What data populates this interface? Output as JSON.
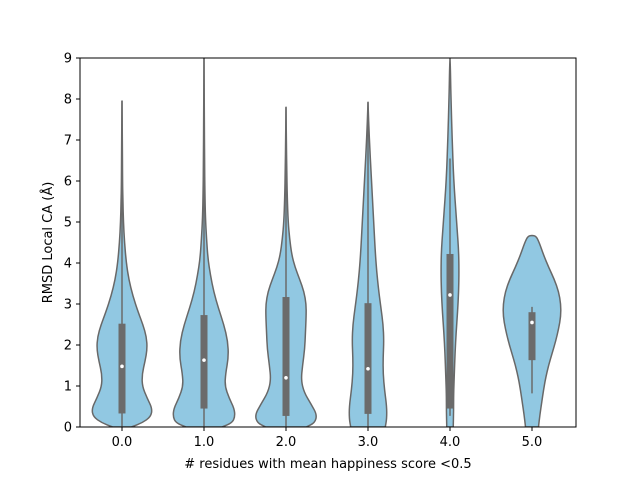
{
  "chart_data": {
    "type": "violin",
    "title": "",
    "xlabel": "# residues with mean happiness score <0.5",
    "ylabel": "RMSD Local CA (Å)",
    "ylim": [
      0,
      9
    ],
    "yticks": [
      "0",
      "1",
      "2",
      "3",
      "4",
      "5",
      "6",
      "7",
      "8",
      "9"
    ],
    "categories": [
      "0.0",
      "1.0",
      "2.0",
      "3.0",
      "4.0",
      "5.0"
    ],
    "grid": false,
    "colors": {
      "fill": "#91c8e2",
      "edge": "#686868",
      "box": "#6b6b6b",
      "median": "#ffffff",
      "axis": "#000000"
    },
    "violins": [
      {
        "category": "0.0",
        "median": 1.48,
        "q1": 0.33,
        "q3": 2.52,
        "whisker_low": 0.0,
        "whisker_high": 7.95,
        "profile": [
          [
            0.0,
            0.26
          ],
          [
            0.1,
            0.56
          ],
          [
            0.25,
            0.8
          ],
          [
            0.45,
            0.84
          ],
          [
            0.7,
            0.7
          ],
          [
            1.0,
            0.56
          ],
          [
            1.3,
            0.56
          ],
          [
            1.6,
            0.64
          ],
          [
            1.9,
            0.7
          ],
          [
            2.2,
            0.68
          ],
          [
            2.5,
            0.58
          ],
          [
            2.8,
            0.45
          ],
          [
            3.2,
            0.3
          ],
          [
            3.6,
            0.19
          ],
          [
            4.0,
            0.12
          ],
          [
            4.5,
            0.07
          ],
          [
            5.0,
            0.04
          ],
          [
            5.5,
            0.025
          ],
          [
            6.0,
            0.015
          ],
          [
            7.0,
            0.01
          ],
          [
            7.95,
            0.0
          ]
        ]
      },
      {
        "category": "1.0",
        "median": 1.63,
        "q1": 0.45,
        "q3": 2.73,
        "whisker_low": 0.0,
        "whisker_high": 9.0,
        "profile": [
          [
            0.0,
            0.5
          ],
          [
            0.1,
            0.78
          ],
          [
            0.25,
            0.86
          ],
          [
            0.45,
            0.84
          ],
          [
            0.7,
            0.7
          ],
          [
            1.0,
            0.58
          ],
          [
            1.3,
            0.6
          ],
          [
            1.7,
            0.68
          ],
          [
            2.1,
            0.66
          ],
          [
            2.5,
            0.55
          ],
          [
            2.9,
            0.4
          ],
          [
            3.3,
            0.27
          ],
          [
            3.7,
            0.18
          ],
          [
            4.1,
            0.11
          ],
          [
            4.6,
            0.07
          ],
          [
            5.1,
            0.04
          ],
          [
            5.7,
            0.025
          ],
          [
            6.5,
            0.015
          ],
          [
            7.5,
            0.01
          ],
          [
            9.0,
            0.0
          ]
        ]
      },
      {
        "category": "2.0",
        "median": 1.2,
        "q1": 0.27,
        "q3": 3.17,
        "whisker_low": 0.0,
        "whisker_high": 7.8,
        "profile": [
          [
            0.0,
            0.56
          ],
          [
            0.1,
            0.8
          ],
          [
            0.3,
            0.86
          ],
          [
            0.55,
            0.7
          ],
          [
            0.85,
            0.5
          ],
          [
            1.15,
            0.42
          ],
          [
            1.5,
            0.46
          ],
          [
            1.9,
            0.52
          ],
          [
            2.3,
            0.54
          ],
          [
            2.7,
            0.56
          ],
          [
            3.0,
            0.56
          ],
          [
            3.3,
            0.5
          ],
          [
            3.6,
            0.38
          ],
          [
            3.9,
            0.25
          ],
          [
            4.2,
            0.16
          ],
          [
            4.6,
            0.1
          ],
          [
            5.0,
            0.06
          ],
          [
            5.6,
            0.035
          ],
          [
            6.3,
            0.02
          ],
          [
            7.0,
            0.01
          ],
          [
            7.8,
            0.0
          ]
        ]
      },
      {
        "category": "3.0",
        "median": 1.42,
        "q1": 0.32,
        "q3": 3.02,
        "whisker_low": 0.0,
        "whisker_high": 7.92,
        "profile": [
          [
            0.0,
            0.48
          ],
          [
            0.2,
            0.52
          ],
          [
            0.5,
            0.52
          ],
          [
            0.9,
            0.46
          ],
          [
            1.3,
            0.42
          ],
          [
            1.7,
            0.42
          ],
          [
            2.1,
            0.44
          ],
          [
            2.5,
            0.42
          ],
          [
            2.9,
            0.36
          ],
          [
            3.3,
            0.3
          ],
          [
            3.8,
            0.24
          ],
          [
            4.3,
            0.2
          ],
          [
            4.8,
            0.17
          ],
          [
            5.3,
            0.14
          ],
          [
            5.8,
            0.11
          ],
          [
            6.3,
            0.08
          ],
          [
            6.8,
            0.05
          ],
          [
            7.3,
            0.025
          ],
          [
            7.6,
            0.012
          ],
          [
            7.92,
            0.0
          ]
        ]
      },
      {
        "category": "4.0",
        "median": 3.22,
        "q1": 0.45,
        "q3": 4.22,
        "whisker_low": 0.27,
        "whisker_high": 6.55,
        "profile": [
          [
            0.0,
            0.09
          ],
          [
            0.4,
            0.1
          ],
          [
            0.8,
            0.1
          ],
          [
            1.3,
            0.12
          ],
          [
            1.8,
            0.14
          ],
          [
            2.3,
            0.17
          ],
          [
            2.8,
            0.21
          ],
          [
            3.3,
            0.24
          ],
          [
            3.8,
            0.25
          ],
          [
            4.3,
            0.24
          ],
          [
            4.8,
            0.2
          ],
          [
            5.3,
            0.16
          ],
          [
            5.8,
            0.12
          ],
          [
            6.3,
            0.09
          ],
          [
            6.8,
            0.07
          ],
          [
            7.3,
            0.05
          ],
          [
            7.8,
            0.035
          ],
          [
            8.3,
            0.02
          ],
          [
            8.7,
            0.012
          ],
          [
            9.0,
            0.0
          ]
        ]
      },
      {
        "category": "5.0",
        "median": 2.55,
        "q1": 1.63,
        "q3": 2.8,
        "whisker_low": 0.82,
        "whisker_high": 2.93,
        "profile": [
          [
            0.0,
            0.18
          ],
          [
            0.3,
            0.22
          ],
          [
            0.6,
            0.27
          ],
          [
            0.9,
            0.32
          ],
          [
            1.2,
            0.38
          ],
          [
            1.5,
            0.46
          ],
          [
            1.8,
            0.56
          ],
          [
            2.1,
            0.66
          ],
          [
            2.4,
            0.74
          ],
          [
            2.7,
            0.8
          ],
          [
            3.0,
            0.8
          ],
          [
            3.3,
            0.74
          ],
          [
            3.6,
            0.62
          ],
          [
            3.9,
            0.46
          ],
          [
            4.2,
            0.32
          ],
          [
            4.5,
            0.2
          ],
          [
            4.66,
            0.11
          ],
          [
            4.67,
            0.0
          ]
        ]
      }
    ]
  }
}
